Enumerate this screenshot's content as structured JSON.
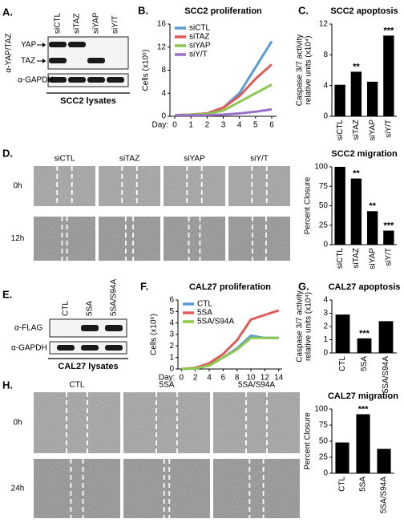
{
  "panel_a": {
    "letter": "A.",
    "antibodies": [
      "α-YAP/TAZ",
      "α-GAPDH"
    ],
    "lanes": [
      "siCTL",
      "siTAZ",
      "siYAP",
      "siY/T"
    ],
    "bands": [
      "YAP",
      "TAZ"
    ],
    "caption": "SCC2 lysates"
  },
  "panel_d": {
    "letter": "D.",
    "lanes": [
      "siCTL",
      "siTAZ",
      "siYAP",
      "siY/T"
    ],
    "timepoints": [
      "0h",
      "12h"
    ]
  },
  "panel_e": {
    "letter": "E.",
    "antibodies": [
      "α-FLAG",
      "α-GAPDH"
    ],
    "lanes": [
      "CTL",
      "5SA",
      "5SA/S94A"
    ],
    "caption": "CAL27 lysates"
  },
  "panel_h": {
    "letter": "H.",
    "lanes": [
      "CTL",
      "5SA",
      "5SA/S94A"
    ],
    "timepoints": [
      "0h",
      "24h"
    ]
  },
  "chart_data": [
    {
      "type": "line",
      "panel": "B.",
      "title": "SCC2 proliferation",
      "ylabel": "Cells (x10⁶)",
      "xlabel": "Day:",
      "x": [
        0,
        1,
        2,
        3,
        4,
        5,
        6
      ],
      "xlim": [
        -0.3,
        6.3
      ],
      "xticks": [
        0,
        1,
        2,
        3,
        4,
        5,
        6
      ],
      "ylim": [
        0,
        16
      ],
      "yticks": [
        0,
        4,
        8,
        12,
        16
      ],
      "legend": "upper-left",
      "series": [
        {
          "name": "siCTL",
          "color": "#5b9bd5",
          "values": [
            0.2,
            0.3,
            0.5,
            1.5,
            4,
            8.5,
            13
          ]
        },
        {
          "name": "siTAZ",
          "color": "#e05a5a",
          "values": [
            0.2,
            0.3,
            0.5,
            1.5,
            3.5,
            6.5,
            9
          ]
        },
        {
          "name": "siYAP",
          "color": "#8cc850",
          "values": [
            0.2,
            0.3,
            0.4,
            1,
            2.5,
            4,
            5.5
          ]
        },
        {
          "name": "siY/T",
          "color": "#9b72c8",
          "values": [
            0.2,
            0.2,
            0.2,
            0.3,
            0.5,
            0.8,
            1.2
          ]
        }
      ]
    },
    {
      "type": "bar",
      "panel": "C.",
      "title": "SCC2 apoptosis",
      "ylabel": [
        "Caspase 3/7 activity",
        "relative units (x10⁴)"
      ],
      "categories": [
        "siCTL",
        "siTAZ",
        "siYAP",
        "siY/T"
      ],
      "values": [
        4.1,
        5.8,
        4.5,
        10.5
      ],
      "annotations": [
        null,
        "**",
        null,
        "***"
      ],
      "color": "#000000",
      "ylim": [
        0,
        12
      ],
      "yticks": [
        0,
        4,
        8,
        12
      ]
    },
    {
      "type": "bar",
      "title": "SCC2 migration",
      "ylabel": "Percent Closure",
      "categories": [
        "siCTL",
        "siTAZ",
        "siYAP",
        "siY/T"
      ],
      "values": [
        100,
        85,
        43,
        18
      ],
      "annotations": [
        null,
        "**",
        "**",
        "***"
      ],
      "color": "#000000",
      "ylim": [
        0,
        100
      ],
      "yticks": [
        0,
        25,
        50,
        75,
        100
      ]
    },
    {
      "type": "line",
      "panel": "F.",
      "title": "CAL27 proliferation",
      "ylabel": "Cells (x10⁶)",
      "xlabel": "Day:",
      "x": [
        0,
        2,
        4,
        6,
        8,
        10,
        12,
        14
      ],
      "xlim": [
        -0.5,
        14.5
      ],
      "xticks": [
        0,
        2,
        4,
        6,
        8,
        10,
        12,
        14
      ],
      "ylim": [
        0,
        6
      ],
      "yticks": [
        0,
        1,
        2,
        3,
        4,
        5,
        6
      ],
      "legend": "upper-left",
      "series": [
        {
          "name": "CTL",
          "color": "#5b9bd5",
          "values": [
            0,
            0.05,
            0.3,
            1,
            1.8,
            2.9,
            2.7,
            2.7
          ]
        },
        {
          "name": "5SA",
          "color": "#e05a5a",
          "values": [
            0,
            0.1,
            0.5,
            1.3,
            2.5,
            4.3,
            4.7,
            5.1
          ]
        },
        {
          "name": "5SA/S94A",
          "color": "#8cc850",
          "values": [
            0,
            0.05,
            0.3,
            1,
            1.7,
            2.7,
            2.7,
            2.7
          ]
        }
      ]
    },
    {
      "type": "bar",
      "panel": "G.",
      "title": "CAL27 apoptosis",
      "ylabel": [
        "Caspase 3/7 activity",
        "relative units (x10⁴)"
      ],
      "categories": [
        "CTL",
        "5SA",
        "5SA/S94A"
      ],
      "values": [
        2.9,
        1.1,
        2.4
      ],
      "annotations": [
        null,
        "***",
        null
      ],
      "color": "#000000",
      "ylim": [
        0,
        4
      ],
      "yticks": [
        0,
        1,
        2,
        3,
        4
      ]
    },
    {
      "type": "bar",
      "title": "CAL27 migration",
      "ylabel": "Percent Closure",
      "categories": [
        "CTL",
        "5SA",
        "5SA/S94A"
      ],
      "values": [
        48,
        92,
        38
      ],
      "annotations": [
        null,
        "***",
        null
      ],
      "color": "#000000",
      "ylim": [
        0,
        100
      ],
      "yticks": [
        0,
        25,
        50,
        75,
        100
      ]
    }
  ]
}
